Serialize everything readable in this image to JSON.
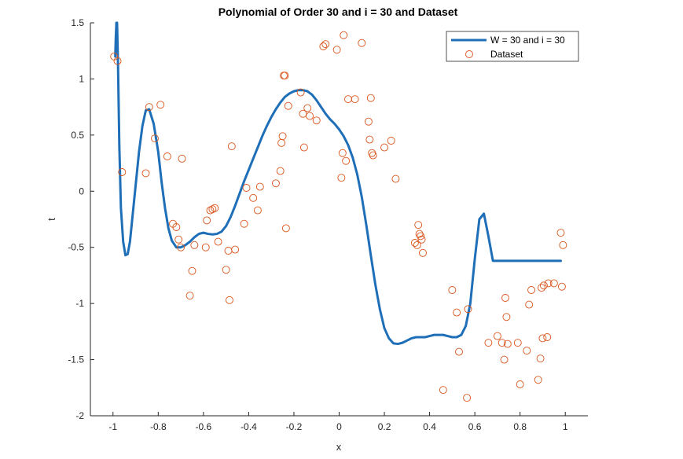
{
  "chart_data": {
    "type": "line",
    "title": "Polynomial of Order 30 and i = 30 and Dataset",
    "xlabel": "x",
    "ylabel": "t",
    "xlim": [
      -1.1,
      1.1
    ],
    "ylim": [
      -2,
      1.5
    ],
    "xticks": [
      -1,
      -0.8,
      -0.6,
      -0.4,
      -0.2,
      0,
      0.2,
      0.4,
      0.6,
      0.8,
      1
    ],
    "xtick_labels": [
      "-1",
      "-0.8",
      "-0.6",
      "-0.4",
      "-0.2",
      "0",
      "0.2",
      "0.4",
      "0.6",
      "0.8",
      "1"
    ],
    "yticks": [
      1.5,
      1,
      0.5,
      0,
      -0.5,
      -1,
      -1.5,
      -2
    ],
    "ytick_labels": [
      "1.5",
      "1",
      "0.5",
      "0",
      "-0.5",
      "-1",
      "-1.5",
      "-2"
    ],
    "grid": false,
    "legend_position": "top-right",
    "colors": {
      "fit": "#1f6fb8",
      "dataset": "#d95319"
    },
    "series": [
      {
        "name": "W = 30 and i = 30",
        "kind": "line",
        "color": "#1f6fb8",
        "x": [
          -0.99,
          -0.988,
          -0.985,
          -0.982,
          -0.978,
          -0.972,
          -0.965,
          -0.955,
          -0.945,
          -0.935,
          -0.925,
          -0.915,
          -0.9,
          -0.885,
          -0.87,
          -0.855,
          -0.84,
          -0.82,
          -0.8,
          -0.785,
          -0.77,
          -0.755,
          -0.74,
          -0.72,
          -0.7,
          -0.68,
          -0.66,
          -0.64,
          -0.62,
          -0.6,
          -0.58,
          -0.56,
          -0.54,
          -0.52,
          -0.5,
          -0.48,
          -0.46,
          -0.44,
          -0.42,
          -0.4,
          -0.38,
          -0.36,
          -0.34,
          -0.32,
          -0.3,
          -0.28,
          -0.26,
          -0.24,
          -0.22,
          -0.2,
          -0.18,
          -0.16,
          -0.14,
          -0.12,
          -0.1,
          -0.08,
          -0.06,
          -0.04,
          -0.02,
          0,
          0.02,
          0.04,
          0.06,
          0.08,
          0.1,
          0.12,
          0.14,
          0.16,
          0.18,
          0.2,
          0.22,
          0.24,
          0.26,
          0.28,
          0.3,
          0.32,
          0.34,
          0.36,
          0.38,
          0.4,
          0.42,
          0.44,
          0.46,
          0.48,
          0.5,
          0.52,
          0.54,
          0.56,
          0.58,
          0.6,
          0.62,
          0.64,
          0.66,
          0.68,
          0.7,
          0.72,
          0.74,
          0.76,
          0.78,
          0.8,
          0.82,
          0.84,
          0.86,
          0.88,
          0.9,
          0.91,
          0.92,
          0.93,
          0.94,
          0.95,
          0.96,
          0.97,
          0.98
        ],
        "y": [
          1.2,
          1.35,
          1.5,
          1.5,
          1.15,
          0.4,
          -0.15,
          -0.45,
          -0.57,
          -0.56,
          -0.45,
          -0.25,
          0.05,
          0.35,
          0.58,
          0.72,
          0.73,
          0.6,
          0.35,
          0.08,
          -0.15,
          -0.33,
          -0.44,
          -0.5,
          -0.5,
          -0.48,
          -0.45,
          -0.41,
          -0.38,
          -0.37,
          -0.38,
          -0.385,
          -0.38,
          -0.36,
          -0.31,
          -0.23,
          -0.13,
          -0.02,
          0.09,
          0.19,
          0.29,
          0.39,
          0.49,
          0.58,
          0.66,
          0.73,
          0.79,
          0.84,
          0.87,
          0.89,
          0.9,
          0.9,
          0.89,
          0.86,
          0.81,
          0.75,
          0.69,
          0.64,
          0.6,
          0.55,
          0.49,
          0.41,
          0.3,
          0.15,
          -0.05,
          -0.3,
          -0.57,
          -0.83,
          -1.05,
          -1.22,
          -1.31,
          -1.355,
          -1.36,
          -1.35,
          -1.33,
          -1.31,
          -1.3,
          -1.3,
          -1.3,
          -1.29,
          -1.28,
          -1.28,
          -1.28,
          -1.29,
          -1.3,
          -1.3,
          -1.28,
          -1.2,
          -1.0,
          -0.6,
          -0.25,
          -0.2,
          -0.4,
          -0.62,
          -0.62,
          -0.62,
          -0.62,
          -0.62,
          -0.62,
          -0.62,
          -0.62,
          -0.62,
          -0.62,
          -0.62,
          -0.62,
          -0.62,
          -0.62,
          -0.62,
          -0.62,
          -0.62,
          -0.62,
          -0.62,
          -0.62
        ]
      },
      {
        "name": "Dataset",
        "kind": "scatter",
        "color": "#d95319",
        "x": [
          -0.995,
          -0.98,
          -0.96,
          -0.855,
          -0.84,
          -0.815,
          -0.79,
          -0.76,
          -0.735,
          -0.72,
          -0.71,
          -0.7,
          -0.695,
          -0.66,
          -0.65,
          -0.64,
          -0.59,
          -0.585,
          -0.57,
          -0.56,
          -0.55,
          -0.535,
          -0.5,
          -0.49,
          -0.485,
          -0.475,
          -0.46,
          -0.42,
          -0.41,
          -0.38,
          -0.36,
          -0.35,
          -0.28,
          -0.26,
          -0.255,
          -0.25,
          -0.245,
          -0.24,
          -0.235,
          -0.225,
          -0.17,
          -0.16,
          -0.155,
          -0.14,
          -0.13,
          -0.1,
          -0.07,
          -0.06,
          -0.01,
          0.01,
          0.015,
          0.02,
          0.03,
          0.04,
          0.07,
          0.1,
          0.13,
          0.135,
          0.14,
          0.145,
          0.15,
          0.2,
          0.23,
          0.25,
          0.335,
          0.345,
          0.35,
          0.355,
          0.36,
          0.365,
          0.37,
          0.46,
          0.5,
          0.52,
          0.53,
          0.565,
          0.57,
          0.66,
          0.7,
          0.72,
          0.73,
          0.735,
          0.74,
          0.745,
          0.79,
          0.8,
          0.83,
          0.84,
          0.85,
          0.88,
          0.89,
          0.895,
          0.9,
          0.905,
          0.92,
          0.925,
          0.95,
          0.98,
          0.985,
          0.99
        ],
        "y": [
          1.2,
          1.16,
          0.17,
          0.16,
          0.75,
          0.47,
          0.77,
          0.31,
          -0.29,
          -0.32,
          -0.43,
          -0.5,
          0.29,
          -0.93,
          -0.71,
          -0.48,
          -0.5,
          -0.26,
          -0.17,
          -0.16,
          -0.15,
          -0.45,
          -0.7,
          -0.53,
          -0.97,
          0.4,
          -0.52,
          -0.29,
          0.03,
          -0.06,
          -0.17,
          0.04,
          0.07,
          0.18,
          0.43,
          0.49,
          1.03,
          1.03,
          -0.33,
          0.76,
          0.88,
          0.69,
          0.39,
          0.74,
          0.67,
          0.63,
          1.29,
          1.31,
          1.26,
          0.12,
          0.34,
          1.39,
          0.27,
          0.82,
          0.82,
          1.32,
          0.62,
          0.46,
          0.83,
          0.34,
          0.32,
          0.39,
          0.45,
          0.11,
          -0.46,
          -0.48,
          -0.3,
          -0.38,
          -0.4,
          -0.43,
          -0.55,
          -1.77,
          -0.88,
          -1.08,
          -1.43,
          -1.84,
          -1.05,
          -1.35,
          -1.29,
          -1.35,
          -1.5,
          -0.95,
          -1.12,
          -1.36,
          -1.35,
          -1.72,
          -1.42,
          -1.01,
          -0.88,
          -1.68,
          -1.49,
          -0.86,
          -1.31,
          -0.84,
          -1.3,
          -0.82,
          -0.82,
          -0.37,
          -0.85,
          -0.48
        ]
      }
    ]
  }
}
